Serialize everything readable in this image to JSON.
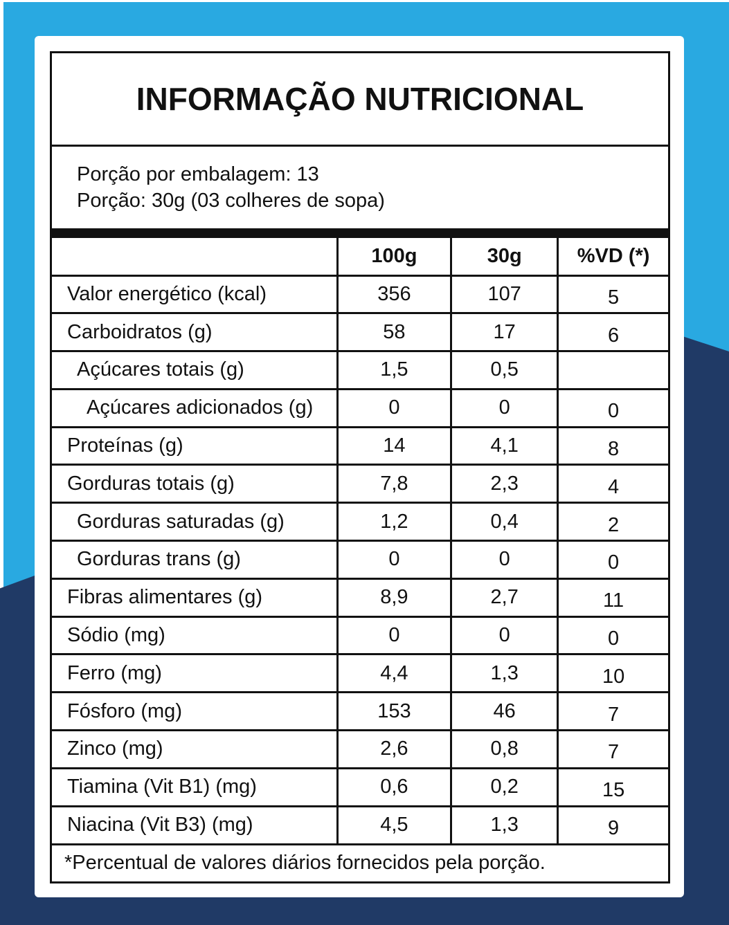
{
  "colors": {
    "light_blue": "#29a9e1",
    "navy": "#203a66",
    "card_background": "#ffffff",
    "text": "#111111"
  },
  "panel": {
    "title": "INFORMAÇÃO NUTRICIONAL",
    "serving_lines": [
      "Porção por embalagem: 13",
      "Porção: 30g (03 colheres de sopa)"
    ],
    "table": {
      "columns": [
        "100g",
        "30g",
        "%VD (*)"
      ],
      "rows": [
        {
          "label": "Valor energético (kcal)",
          "v100": "356",
          "v30": "107",
          "vd": "5",
          "indent": 0
        },
        {
          "label": "Carboidratos (g)",
          "v100": "58",
          "v30": "17",
          "vd": "6",
          "indent": 0
        },
        {
          "label": "Açúcares totais (g)",
          "v100": "1,5",
          "v30": "0,5",
          "vd": "",
          "indent": 1
        },
        {
          "label": "Açúcares adicionados (g)",
          "v100": "0",
          "v30": "0",
          "vd": "0",
          "indent": 2
        },
        {
          "label": "Proteínas (g)",
          "v100": "14",
          "v30": "4,1",
          "vd": "8",
          "indent": 0
        },
        {
          "label": "Gorduras totais (g)",
          "v100": "7,8",
          "v30": "2,3",
          "vd": "4",
          "indent": 0
        },
        {
          "label": "Gorduras saturadas (g)",
          "v100": "1,2",
          "v30": "0,4",
          "vd": "2",
          "indent": 1
        },
        {
          "label": "Gorduras trans (g)",
          "v100": "0",
          "v30": "0",
          "vd": "0",
          "indent": 1
        },
        {
          "label": "Fibras alimentares (g)",
          "v100": "8,9",
          "v30": "2,7",
          "vd": "11",
          "indent": 0
        },
        {
          "label": "Sódio (mg)",
          "v100": "0",
          "v30": "0",
          "vd": "0",
          "indent": 0
        },
        {
          "label": "Ferro (mg)",
          "v100": "4,4",
          "v30": "1,3",
          "vd": "10",
          "indent": 0
        },
        {
          "label": "Fósforo (mg)",
          "v100": "153",
          "v30": "46",
          "vd": "7",
          "indent": 0
        },
        {
          "label": "Zinco (mg)",
          "v100": "2,6",
          "v30": "0,8",
          "vd": "7",
          "indent": 0
        },
        {
          "label": "Tiamina (Vit B1) (mg)",
          "v100": "0,6",
          "v30": "0,2",
          "vd": "15",
          "indent": 0
        },
        {
          "label": "Niacina (Vit B3) (mg)",
          "v100": "4,5",
          "v30": "1,3",
          "vd": "9",
          "indent": 0
        }
      ],
      "footnote": "*Percentual de valores diários fornecidos pela porção."
    }
  }
}
